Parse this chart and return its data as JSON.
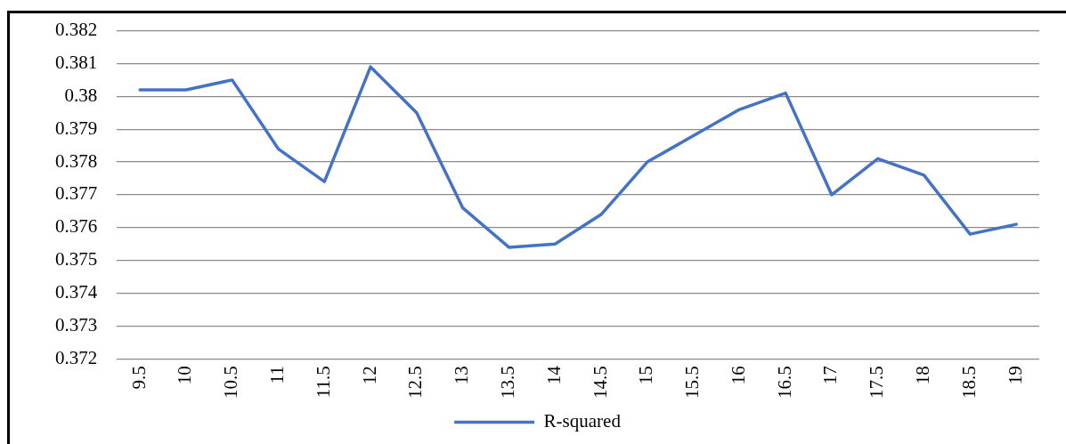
{
  "chart_data": {
    "type": "line",
    "categories": [
      "9.5",
      "10",
      "10.5",
      "11",
      "11.5",
      "12",
      "12.5",
      "13",
      "13.5",
      "14",
      "14.5",
      "15",
      "15.5",
      "16",
      "16.5",
      "17",
      "17.5",
      "18",
      "18.5",
      "19"
    ],
    "series": [
      {
        "name": "R-squared",
        "color": "#4472c4",
        "values": [
          0.3802,
          0.3802,
          0.3805,
          0.3784,
          0.3774,
          0.3809,
          0.3795,
          0.3766,
          0.3754,
          0.3755,
          0.3764,
          0.378,
          0.3788,
          0.3796,
          0.3801,
          0.377,
          0.3781,
          0.3776,
          0.3758,
          0.3761
        ]
      }
    ],
    "ylim": [
      0.372,
      0.382
    ],
    "yticks": [
      0.372,
      0.373,
      0.374,
      0.375,
      0.376,
      0.377,
      0.378,
      0.379,
      0.38,
      0.381,
      0.382
    ],
    "grid": "y",
    "legend": "bottom",
    "marker": "none",
    "line_style": "solid"
  }
}
